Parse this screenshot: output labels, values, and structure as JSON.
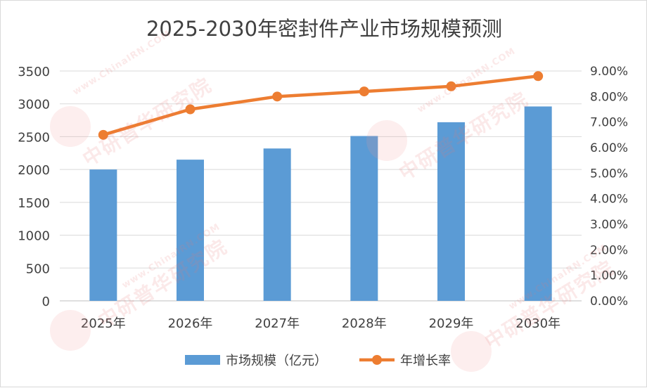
{
  "chart_data": {
    "type": "bar",
    "title": "2025-2030年密封件产业市场规模预测",
    "categories": [
      "2025年",
      "2026年",
      "2027年",
      "2028年",
      "2029年",
      "2030年"
    ],
    "series": [
      {
        "name": "市场规模（亿元）",
        "type": "bar",
        "axis": "left",
        "color": "#5B9BD5",
        "values": [
          2000,
          2150,
          2320,
          2510,
          2720,
          2960
        ]
      },
      {
        "name": "年增长率",
        "type": "line",
        "axis": "right",
        "color": "#ED7D31",
        "values": [
          6.5,
          7.5,
          8.0,
          8.2,
          8.4,
          8.8
        ]
      }
    ],
    "y_left": {
      "ylim": [
        0,
        3500
      ],
      "ticks": [
        0,
        500,
        1000,
        1500,
        2000,
        2500,
        3000,
        3500
      ]
    },
    "y_right": {
      "ylim": [
        0,
        9
      ],
      "ticks": [
        "0.00%",
        "1.00%",
        "2.00%",
        "3.00%",
        "4.00%",
        "5.00%",
        "6.00%",
        "7.00%",
        "8.00%",
        "9.00%"
      ]
    },
    "grid": true,
    "legend": "bottom"
  },
  "watermark": {
    "url": "www.ChinaIRN.COM",
    "org": "中研普华研究院",
    "logo": "CIRN"
  }
}
